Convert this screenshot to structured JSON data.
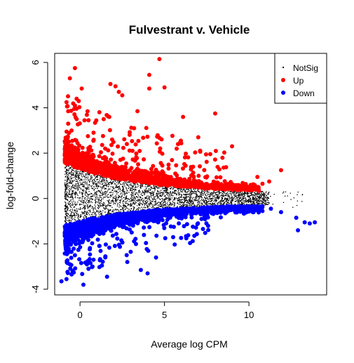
{
  "chart_data": {
    "type": "scatter",
    "title": "Fulvestrant v. Vehicle",
    "xlabel": "Average log CPM",
    "ylabel": "log-fold-change",
    "xlim": [
      -1.5,
      14.6
    ],
    "ylim": [
      -4.25,
      6.4
    ],
    "x_ticks": [
      "0",
      "5",
      "10"
    ],
    "y_ticks": [
      "-4",
      "-2",
      "0",
      "2",
      "4",
      "6"
    ],
    "grid": false,
    "legend_position": "top-right",
    "series": [
      {
        "name": "NotSig",
        "color": "#000000",
        "marker": "small-dot",
        "description_points": "dense band near 0, wide at low CPM, narrowing at high CPM",
        "x_range": [
          -0.9,
          13.2
        ],
        "y_range": [
          -1.0,
          1.6
        ]
      },
      {
        "name": "Up",
        "color": "#ff0000",
        "marker": "filled-circle",
        "x_range": [
          -0.9,
          12.0
        ],
        "y_range": [
          0.1,
          6.15
        ],
        "points": [
          [
            4.7,
            6.15
          ],
          [
            -0.3,
            5.75
          ],
          [
            -0.6,
            5.3
          ],
          [
            4.1,
            5.45
          ],
          [
            0.1,
            4.85
          ],
          [
            1.8,
            5.05
          ],
          [
            2.1,
            4.95
          ],
          [
            2.3,
            4.7
          ],
          [
            2.5,
            4.55
          ],
          [
            4.1,
            4.85
          ],
          [
            5.0,
            4.9
          ],
          [
            -0.2,
            4.4
          ],
          [
            -0.3,
            4.1
          ],
          [
            -0.7,
            3.85
          ],
          [
            3.4,
            3.85
          ],
          [
            6.1,
            3.6
          ],
          [
            8.0,
            3.75
          ],
          [
            -0.7,
            3.3
          ],
          [
            -0.2,
            3.5
          ],
          [
            0.5,
            3.45
          ],
          [
            1.4,
            3.5
          ],
          [
            3.2,
            3.1
          ],
          [
            -0.5,
            3.0
          ],
          [
            0.8,
            2.9
          ],
          [
            7.0,
            2.7
          ],
          [
            9.0,
            2.3
          ],
          [
            5.8,
            2.4
          ],
          [
            1.9,
            2.6
          ],
          [
            11.9,
            1.25
          ],
          [
            10.5,
            0.95
          ],
          [
            11.2,
            0.75
          ],
          [
            10.8,
            0.65
          ]
        ]
      },
      {
        "name": "Down",
        "color": "#0000ff",
        "marker": "filled-circle",
        "x_range": [
          -1.1,
          14.0
        ],
        "y_range": [
          -3.85,
          -0.1
        ],
        "points": [
          [
            -1.1,
            -3.65
          ],
          [
            0.2,
            -3.8
          ],
          [
            -0.5,
            -3.35
          ],
          [
            0.5,
            -3.1
          ],
          [
            1.6,
            -3.45
          ],
          [
            3.6,
            -3.15
          ],
          [
            4.0,
            -3.3
          ],
          [
            -0.6,
            -2.9
          ],
          [
            0.8,
            -2.7
          ],
          [
            2.8,
            -2.8
          ],
          [
            -0.3,
            -2.5
          ],
          [
            1.5,
            -2.55
          ],
          [
            3.0,
            -2.35
          ],
          [
            4.5,
            -2.6
          ],
          [
            -0.8,
            -1.95
          ],
          [
            12.8,
            -0.85
          ],
          [
            13.3,
            -1.05
          ],
          [
            13.6,
            -1.1
          ],
          [
            13.9,
            -1.05
          ],
          [
            12.9,
            -1.4
          ],
          [
            11.9,
            -0.6
          ],
          [
            11.3,
            -0.45
          ],
          [
            10.8,
            -0.55
          ]
        ]
      }
    ]
  }
}
